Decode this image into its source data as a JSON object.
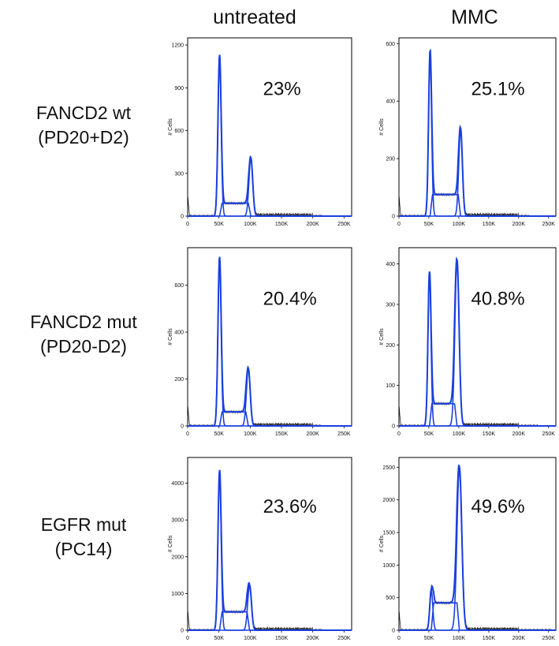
{
  "column_titles": [
    "untreated",
    "MMC"
  ],
  "row_labels": [
    {
      "line1": "FANCD2 wt",
      "line2": "(PD20+D2)"
    },
    {
      "line1": "FANCD2 mut",
      "line2": "(PD20-D2)"
    },
    {
      "line1": "EGFR mut",
      "line2": "(PC14)"
    }
  ],
  "colors": {
    "fit": "#1a3fe0",
    "raw": "#1a1a1a",
    "frame": "#000000"
  },
  "chart_data": [
    {
      "type": "area",
      "row": "FANCD2 wt (PD20+D2)",
      "column": "untreated",
      "ylabel": "# Cells",
      "xticks": [
        "0",
        "50K",
        "100K",
        "150K",
        "200K",
        "250K"
      ],
      "yticks": [
        "0",
        "300",
        "600",
        "900",
        "1200"
      ],
      "ylim": [
        0,
        1250
      ],
      "xlim": [
        0,
        262144
      ],
      "annotation": "23%",
      "g1": {
        "pos": 51000,
        "height": 1130,
        "width": 2500
      },
      "g2": {
        "pos": 101000,
        "height": 410,
        "width": 3000
      },
      "s_phase": 90
    },
    {
      "type": "area",
      "row": "FANCD2 wt (PD20+D2)",
      "column": "MMC",
      "ylabel": "# Cells",
      "xticks": [
        "0",
        "50K",
        "100K",
        "150K",
        "200K",
        "250K"
      ],
      "yticks": [
        "0",
        "200",
        "400",
        "600"
      ],
      "ylim": [
        0,
        620
      ],
      "xlim": [
        0,
        262144
      ],
      "annotation": "25.1%",
      "g1": {
        "pos": 52000,
        "height": 575,
        "width": 2500
      },
      "g2": {
        "pos": 103000,
        "height": 305,
        "width": 3000
      },
      "s_phase": 75
    },
    {
      "type": "area",
      "row": "FANCD2 mut (PD20-D2)",
      "column": "untreated",
      "ylabel": "# Cells",
      "xticks": [
        "0",
        "50K",
        "100K",
        "150K",
        "200K",
        "250K"
      ],
      "yticks": [
        "0",
        "200",
        "400",
        "600"
      ],
      "ylim": [
        0,
        760
      ],
      "xlim": [
        0,
        262144
      ],
      "annotation": "20.4%",
      "g1": {
        "pos": 51000,
        "height": 720,
        "width": 2500
      },
      "g2": {
        "pos": 97000,
        "height": 245,
        "width": 3000
      },
      "s_phase": 60
    },
    {
      "type": "area",
      "row": "FANCD2 mut (PD20-D2)",
      "column": "MMC",
      "ylabel": "# Cells",
      "xticks": [
        "0",
        "50K",
        "100K",
        "150K",
        "200K",
        "250K"
      ],
      "yticks": [
        "0",
        "100",
        "200",
        "300",
        "400"
      ],
      "ylim": [
        0,
        440
      ],
      "xlim": [
        0,
        262144
      ],
      "annotation": "40.8%",
      "g1": {
        "pos": 51000,
        "height": 380,
        "width": 2500
      },
      "g2": {
        "pos": 97000,
        "height": 410,
        "width": 3500
      },
      "s_phase": 55
    },
    {
      "type": "area",
      "row": "EGFR mut (PC14)",
      "column": "untreated",
      "ylabel": "# Cells",
      "xticks": [
        "0",
        "50K",
        "100K",
        "150K",
        "200K",
        "250K"
      ],
      "yticks": [
        "0",
        "1000",
        "2000",
        "3000",
        "4000"
      ],
      "ylim": [
        0,
        4700
      ],
      "xlim": [
        0,
        262144
      ],
      "annotation": "23.6%",
      "g1": {
        "pos": 51000,
        "height": 4350,
        "width": 2500
      },
      "g2": {
        "pos": 99000,
        "height": 1230,
        "width": 3000
      },
      "s_phase": 500
    },
    {
      "type": "area",
      "row": "EGFR mut (PC14)",
      "column": "MMC",
      "ylabel": "# Cells",
      "xticks": [
        "0",
        "50K",
        "100K",
        "150K",
        "200K",
        "250K"
      ],
      "yticks": [
        "0",
        "500",
        "1000",
        "1500",
        "2000",
        "2500"
      ],
      "ylim": [
        0,
        2650
      ],
      "xlim": [
        0,
        262144
      ],
      "annotation": "49.6%",
      "g1": {
        "pos": 54000,
        "height": 620,
        "width": 2500
      },
      "g2": {
        "pos": 101000,
        "height": 2500,
        "width": 4000
      },
      "s_phase": 420
    }
  ]
}
